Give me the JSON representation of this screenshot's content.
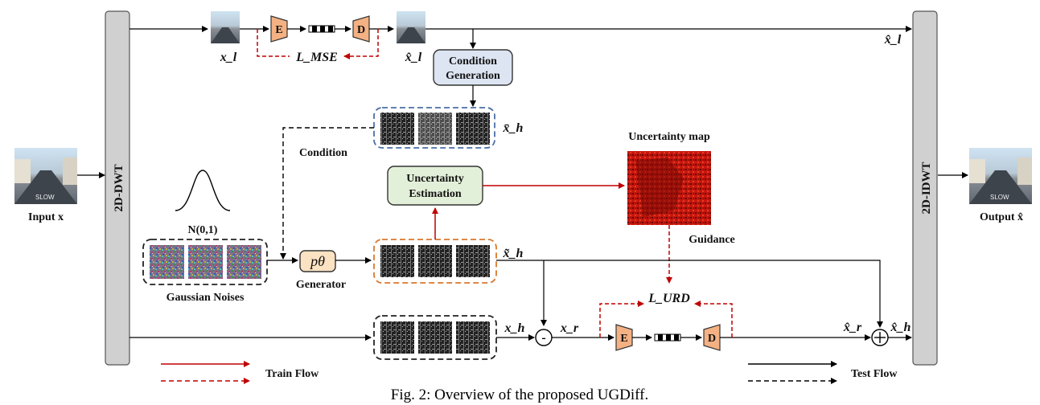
{
  "caption": "Fig. 2: Overview of the proposed UGDiff.",
  "dwt_label": "2D-DWT",
  "idwt_label": "2D-IDWT",
  "input_label": "Input x",
  "output_label": "Output x̂",
  "encoder_label": "E",
  "decoder_label": "D",
  "x_l": "x_l",
  "x_l_hat": "x̂_l",
  "x_l_hat_right": "x̂_l",
  "l_mse": "L_MSE",
  "condition_generation": [
    "Condition",
    "Generation"
  ],
  "x_h_bar": "x̄_h",
  "condition": "Condition",
  "uncertainty_estimation": [
    "Uncertainty",
    "Estimation"
  ],
  "uncertainty_map": "Uncertainty map",
  "guidance": "Guidance",
  "normal_dist": "N(0,1)",
  "gaussian_noises": "Gaussian Noises",
  "p_theta": "pθ",
  "generator": "Generator",
  "x_h_tilde": "x̃_h",
  "l_urd": "L_URD",
  "x_h": "x_h",
  "x_r": "x_r",
  "x_r_hat": "x̂_r",
  "x_h_hat": "x̂_h",
  "minus": "-",
  "train_flow": "Train Flow",
  "test_flow": "Test Flow",
  "colors": {
    "train": "#c00000",
    "test": "#000000",
    "cond_box": "#dde5f3",
    "unc_box": "#e3f0d9",
    "ed_block": "#f4b183",
    "ptheta": "#fbe2c2",
    "dwt_bar": "#d0d0d0",
    "blue_dash": "#4a6fa5",
    "orange_dash": "#d9782e"
  }
}
